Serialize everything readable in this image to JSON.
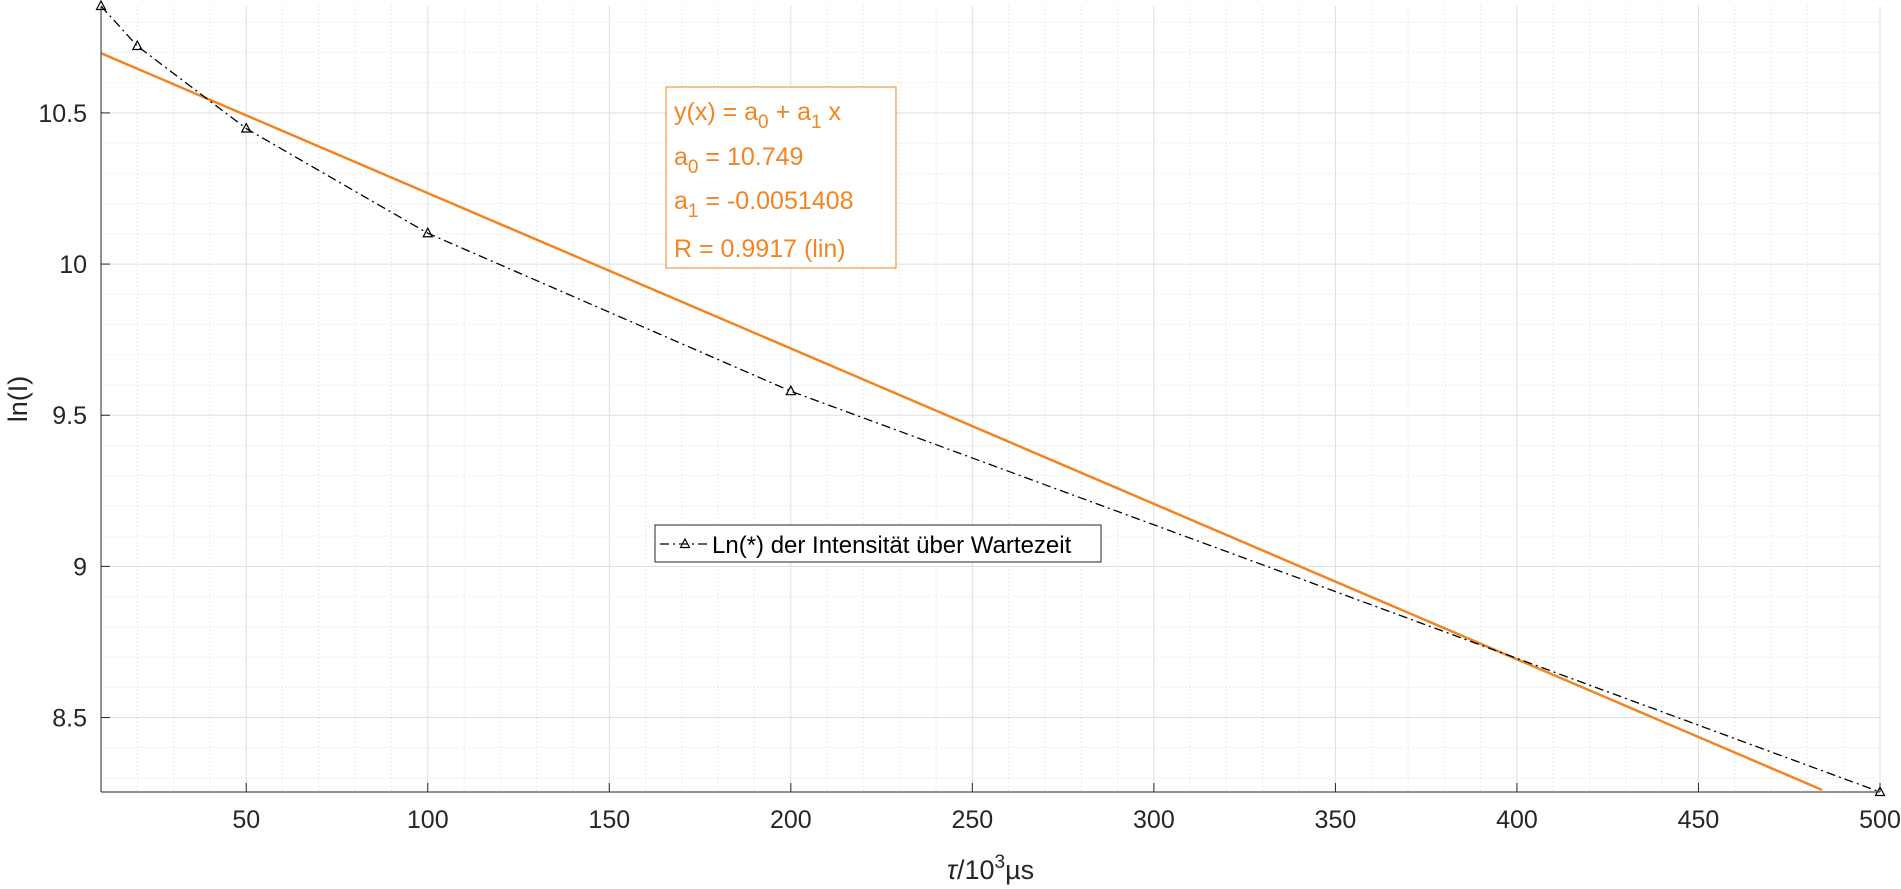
{
  "chart_data": {
    "type": "line",
    "xlabel": {
      "symbol": "τ",
      "mid": "/10",
      "sup": "3",
      "unit": "µs"
    },
    "ylabel": "ln(I)",
    "xlim": [
      10,
      500
    ],
    "ylim": [
      8.2537,
      10.8537
    ],
    "xticks": [
      50,
      100,
      150,
      200,
      250,
      300,
      350,
      400,
      450,
      500
    ],
    "yticks": [
      8.5,
      9,
      9.5,
      10,
      10.5
    ],
    "grid": true,
    "minor_grid": true,
    "series": [
      {
        "name": "Ln(*) der Intensität über Wartezeit",
        "x": [
          10,
          20,
          50,
          100,
          200,
          500
        ],
        "y": [
          10.8537,
          10.7213,
          10.4484,
          10.1021,
          9.5795,
          8.2537
        ],
        "color": "#000000",
        "line_style": "dash-dot",
        "marker": "triangle"
      }
    ],
    "fit": {
      "color": "#f28522",
      "a0": 10.749,
      "a1": -0.0051408,
      "x_range": [
        10,
        484
      ],
      "box": {
        "line1": {
          "a": "y(x) = a",
          "s1": "0",
          "b": " + a",
          "s2": "1",
          "c": " x"
        },
        "line2": {
          "a": "a",
          "s": "0",
          "b": " = 10.749"
        },
        "line3": {
          "a": "a",
          "s": "1",
          "b": " = -0.0051408"
        },
        "line4": "R = 0.9917  (lin)"
      }
    },
    "legend": {
      "placement": "center"
    }
  }
}
